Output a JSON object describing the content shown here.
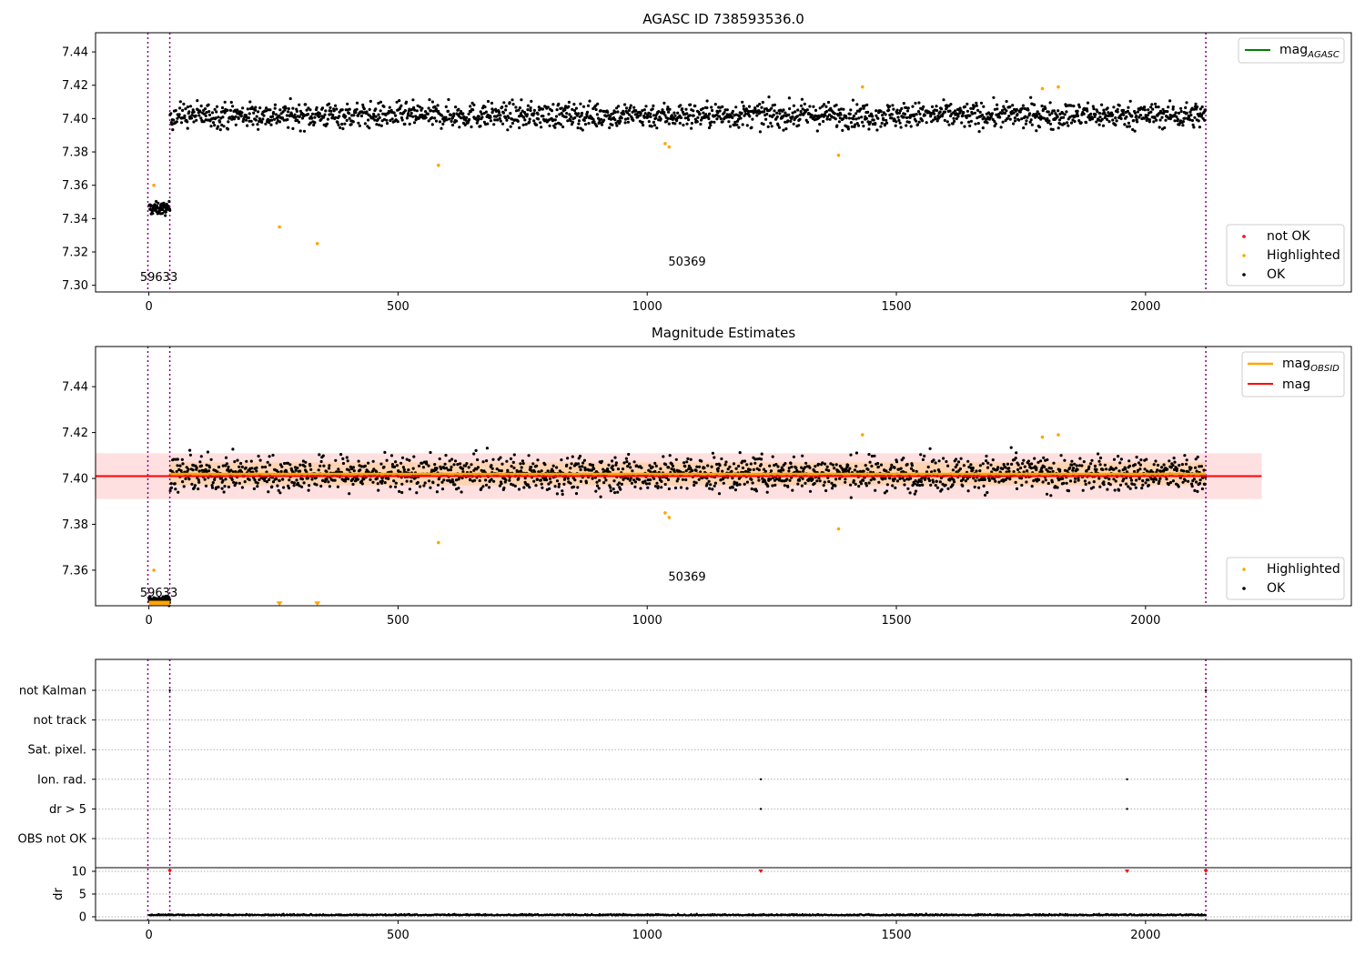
{
  "chart_data": [
    {
      "type": "scatter",
      "title": "AGASC ID 738593536.0",
      "xlim": [
        -107,
        2413
      ],
      "ylim": [
        7.296,
        7.4515
      ],
      "xticks": [
        0,
        500,
        1000,
        1500,
        2000
      ],
      "yticks": [
        7.3,
        7.32,
        7.34,
        7.36,
        7.38,
        7.4,
        7.42,
        7.44
      ],
      "ytick_labels": [
        "7.30",
        "7.32",
        "7.34",
        "7.36",
        "7.38",
        "7.40",
        "7.42",
        "7.44"
      ],
      "vlines": [
        -2,
        42,
        2121
      ],
      "legend_lines": [
        {
          "label": "mag",
          "sub": "AGASC",
          "color": "#008000"
        }
      ],
      "legend_points": [
        {
          "label": "not OK",
          "color": "#ff0000"
        },
        {
          "label": "Highlighted",
          "color": "#ffa500"
        },
        {
          "label": "OK",
          "color": "#000000"
        }
      ],
      "annotations": [
        {
          "text": "59633",
          "x": 20,
          "y": 7.3025
        },
        {
          "text": "50369",
          "x": 1080,
          "y": 7.3117
        }
      ],
      "series": [
        {
          "name": "OK",
          "color": "#000000",
          "segments": [
            {
              "x_start": 0,
              "x_end": 42,
              "mean": 7.346,
              "spread": 0.006
            },
            {
              "x_start": 42,
              "x_end": 2121,
              "mean": 7.402,
              "spread": 0.012
            }
          ]
        },
        {
          "name": "Highlighted",
          "color": "#ffa500",
          "points": [
            [
              10,
              7.36
            ],
            [
              262,
              7.335
            ],
            [
              338,
              7.325
            ],
            [
              581,
              7.372
            ],
            [
              1036,
              7.385
            ],
            [
              1044,
              7.383
            ],
            [
              1384,
              7.378
            ],
            [
              1432,
              7.419
            ],
            [
              1793,
              7.418
            ],
            [
              1825,
              7.419
            ]
          ]
        }
      ]
    },
    {
      "type": "scatter",
      "title": "Magnitude Estimates",
      "xlim": [
        -107,
        2413
      ],
      "ylim": [
        7.3445,
        7.4575
      ],
      "xticks": [
        0,
        500,
        1000,
        1500,
        2000
      ],
      "yticks": [
        7.36,
        7.38,
        7.4,
        7.42,
        7.44
      ],
      "ytick_labels": [
        "7.36",
        "7.38",
        "7.40",
        "7.42",
        "7.44"
      ],
      "vlines": [
        -2,
        42,
        2121
      ],
      "mag": 7.401,
      "mag_band": [
        7.391,
        7.411
      ],
      "mag_obsid": 7.402,
      "mag_obsid_band": [
        7.397,
        7.407
      ],
      "mag_xrange": [
        -107,
        2233
      ],
      "mag_obsid_xrange": [
        42,
        2121
      ],
      "legend_lines": [
        {
          "label": "mag",
          "sub": "OBSID",
          "color": "#ffa500"
        },
        {
          "label": "mag",
          "sub": "",
          "color": "#ff0000"
        }
      ],
      "legend_points": [
        {
          "label": "Highlighted",
          "color": "#ffa500"
        },
        {
          "label": "OK",
          "color": "#000000"
        }
      ],
      "annotations": [
        {
          "text": "59633",
          "x": 20,
          "y": 7.3485
        },
        {
          "text": "50369",
          "x": 1080,
          "y": 7.3555
        }
      ],
      "series": [
        {
          "name": "OK",
          "color": "#000000",
          "segments": [
            {
              "x_start": 0,
              "x_end": 42,
              "mean": 7.347,
              "spread": 0.003
            },
            {
              "x_start": 42,
              "x_end": 2121,
              "mean": 7.402,
              "spread": 0.012
            }
          ]
        },
        {
          "name": "Highlighted",
          "color": "#ffa500",
          "points": [
            [
              10,
              7.36
            ],
            [
              581,
              7.372
            ],
            [
              1036,
              7.385
            ],
            [
              1044,
              7.383
            ],
            [
              1384,
              7.378
            ],
            [
              1432,
              7.419
            ],
            [
              1793,
              7.418
            ],
            [
              1825,
              7.419
            ]
          ]
        },
        {
          "name": "Highlighted clipped",
          "color": "#ffa500",
          "marker": "triangle-down",
          "points": [
            [
              262,
              7.3448
            ],
            [
              338,
              7.3448
            ]
          ]
        }
      ]
    },
    {
      "type": "scatter",
      "title": "",
      "xlim": [
        -107,
        2413
      ],
      "xticks": [
        0,
        500,
        1000,
        1500,
        2000
      ],
      "vlines": [
        -2,
        42,
        2121
      ],
      "categories": [
        "not Kalman",
        "not track",
        "Sat. pixel.",
        "Ion. rad.",
        "dr > 5",
        "OBS not OK"
      ],
      "flag_points": [
        {
          "category": "not Kalman",
          "x": [
            42,
            2121
          ]
        },
        {
          "category": "Ion. rad.",
          "x": [
            1228,
            1963
          ]
        },
        {
          "category": "dr > 5",
          "x": [
            1228,
            1963
          ]
        }
      ],
      "dr_panel": {
        "ylabel": "dr",
        "ylim": [
          -0.8,
          10.8
        ],
        "yticks": [
          0,
          5,
          10
        ],
        "ytick_labels": [
          "0",
          "5",
          "10"
        ],
        "baseline": 0.3,
        "spread": 0.2,
        "clipped_points": [
          42,
          1228,
          1963,
          2121
        ]
      }
    }
  ]
}
